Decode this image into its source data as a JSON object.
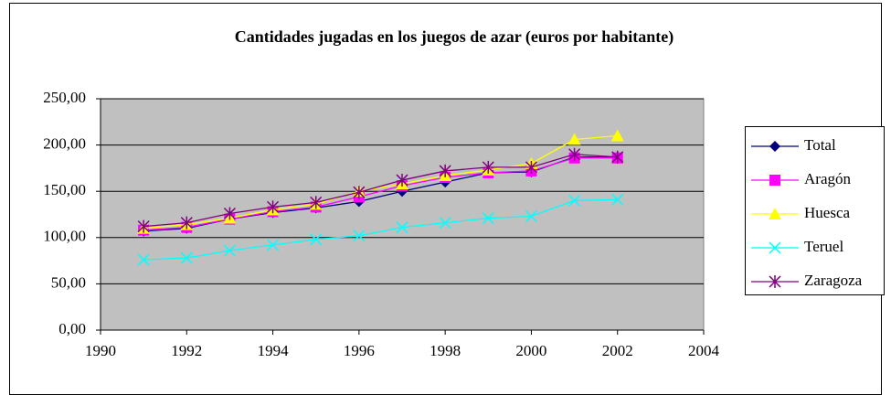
{
  "chart_data": {
    "type": "line",
    "title": "Cantidades jugadas en los juegos de azar (euros por habitante)",
    "x": [
      1991,
      1992,
      1993,
      1994,
      1995,
      1996,
      1997,
      1998,
      1999,
      2000,
      2001,
      2002
    ],
    "series": [
      {
        "name": "Total",
        "color": "#000080",
        "marker": "diamond",
        "values": [
          107,
          110,
          120,
          127,
          132,
          139,
          150,
          160,
          170,
          171,
          187,
          187
        ]
      },
      {
        "name": "Aragón",
        "color": "#ff00ff",
        "marker": "square",
        "values": [
          108,
          111,
          120,
          128,
          133,
          144,
          156,
          165,
          170,
          172,
          186,
          186
        ]
      },
      {
        "name": "Huesca",
        "color": "#ffff00",
        "marker": "triangle",
        "values": [
          110,
          114,
          121,
          130,
          136,
          150,
          158,
          167,
          173,
          180,
          206,
          210
        ]
      },
      {
        "name": "Teruel",
        "color": "#00ffff",
        "marker": "x",
        "values": [
          76,
          78,
          86,
          92,
          98,
          102,
          111,
          116,
          121,
          123,
          140,
          141
        ]
      },
      {
        "name": "Zaragoza",
        "color": "#800080",
        "marker": "asterisk",
        "values": [
          112,
          116,
          126,
          133,
          138,
          149,
          162,
          172,
          176,
          176,
          190,
          187
        ]
      }
    ],
    "xlim": [
      1990,
      2004
    ],
    "xticks": [
      1990,
      1992,
      1994,
      1996,
      1998,
      2000,
      2002,
      2004
    ],
    "ylim": [
      0,
      250
    ],
    "yticks": [
      {
        "value": 0,
        "label": "0,00"
      },
      {
        "value": 50,
        "label": "50,00"
      },
      {
        "value": 100,
        "label": "100,00"
      },
      {
        "value": 150,
        "label": "150,00"
      },
      {
        "value": 200,
        "label": "200,00"
      },
      {
        "value": 250,
        "label": "250,00"
      }
    ],
    "grid": true,
    "legend": "right"
  }
}
